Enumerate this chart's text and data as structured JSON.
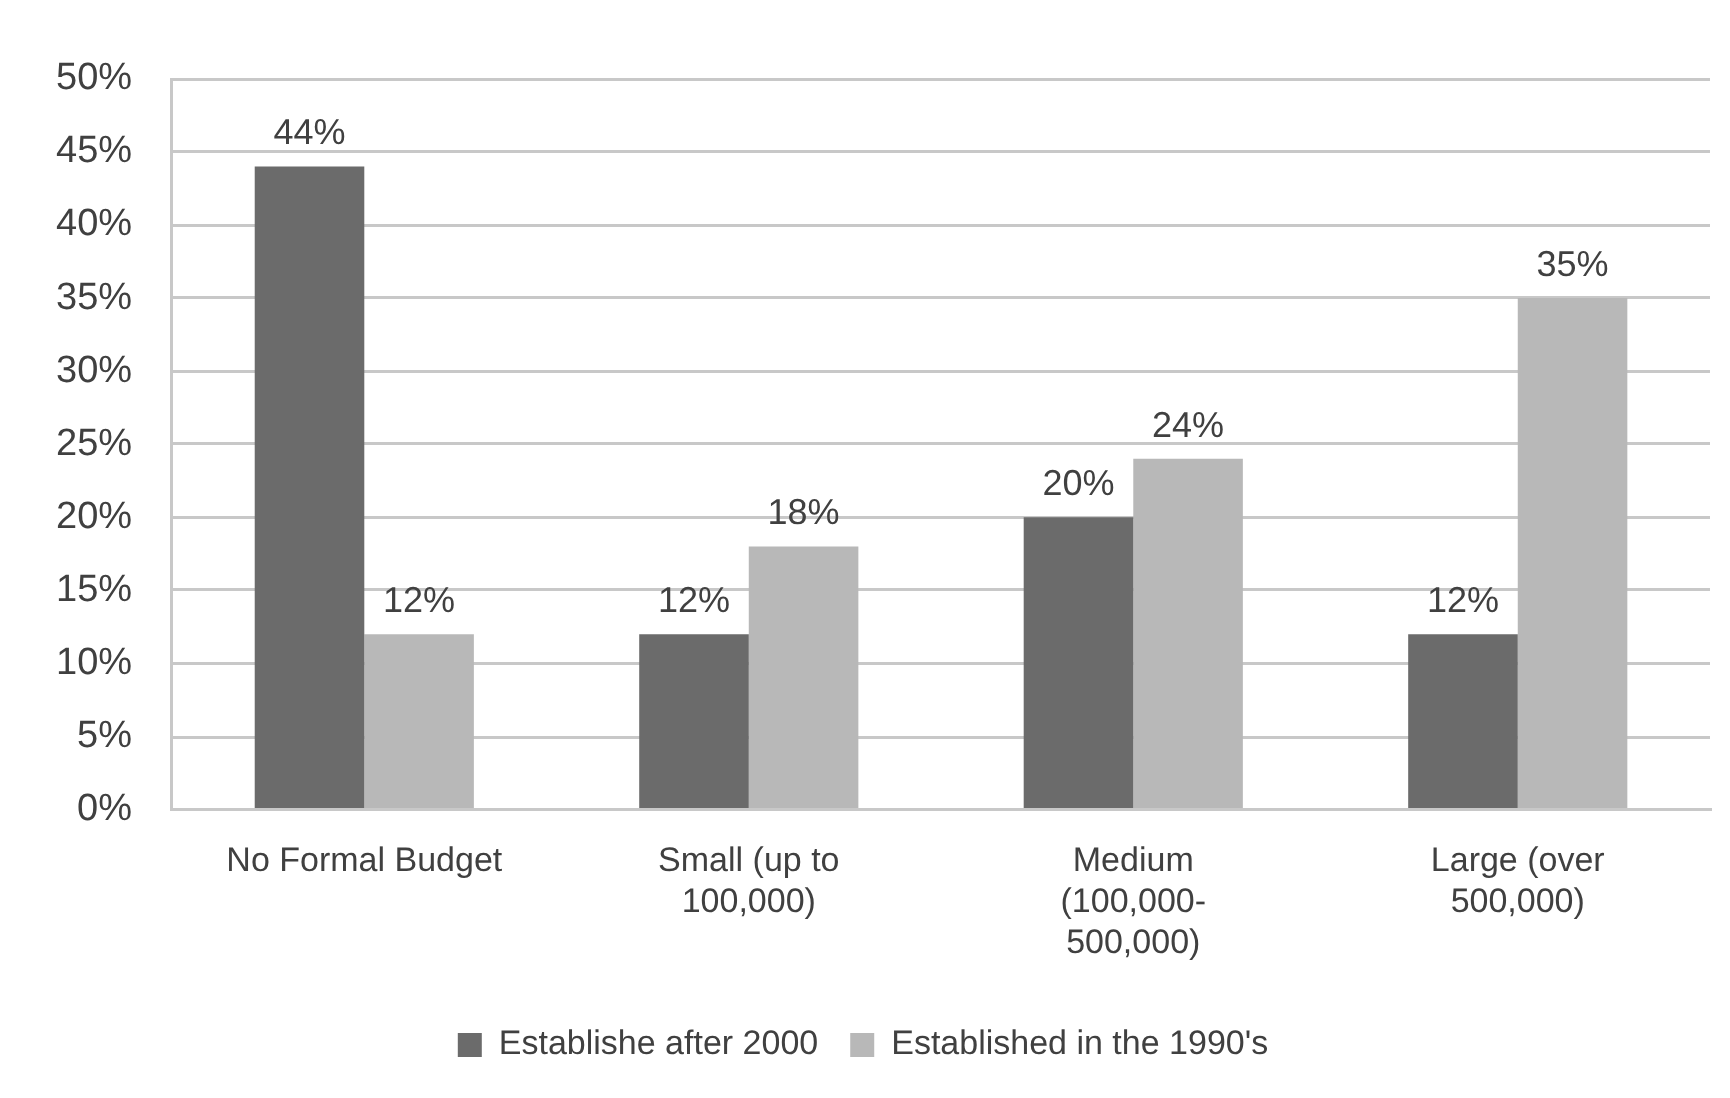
{
  "chart_data": {
    "type": "bar",
    "categories": [
      "No Formal Budget",
      "Small (up to 100,000)",
      "Medium (100,000-500,000)",
      "Large (over 500,000)"
    ],
    "series": [
      {
        "name": "Establishe after 2000",
        "color": "#6b6b6b",
        "values": [
          44,
          12,
          20,
          12
        ],
        "value_labels": [
          "44%",
          "12%",
          "20%",
          "12%"
        ]
      },
      {
        "name": "Established in the 1990's",
        "color": "#b8b8b8",
        "values": [
          12,
          18,
          24,
          35
        ],
        "value_labels": [
          "12%",
          "18%",
          "24%",
          "35%"
        ]
      }
    ],
    "ylim": [
      0,
      50
    ],
    "yticks": [
      {
        "value": 0,
        "label": "0%"
      },
      {
        "value": 5,
        "label": "5%"
      },
      {
        "value": 10,
        "label": "10%"
      },
      {
        "value": 15,
        "label": "15%"
      },
      {
        "value": 20,
        "label": "20%"
      },
      {
        "value": 25,
        "label": "25%"
      },
      {
        "value": 30,
        "label": "30%"
      },
      {
        "value": 35,
        "label": "35%"
      },
      {
        "value": 40,
        "label": "40%"
      },
      {
        "value": 45,
        "label": "45%"
      },
      {
        "value": 50,
        "label": "50%"
      }
    ],
    "grid": "y",
    "legend": "bottom"
  }
}
